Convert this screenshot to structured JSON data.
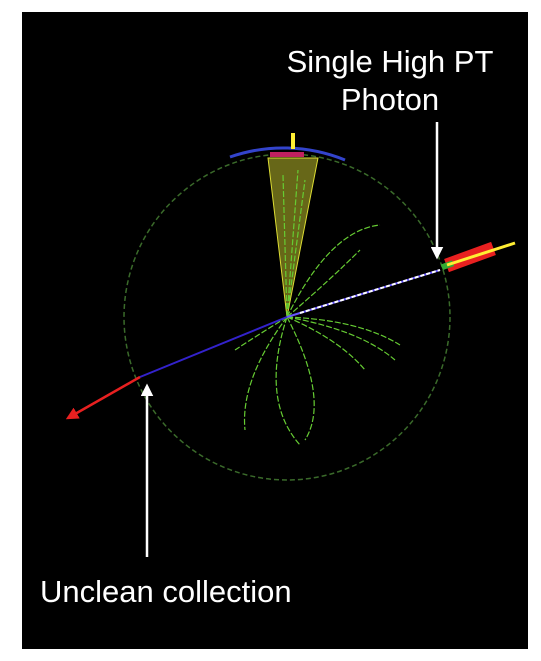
{
  "annotations": {
    "photon": [
      "Single High PT",
      "Photon"
    ],
    "unclean": "Unclean collection"
  }
}
